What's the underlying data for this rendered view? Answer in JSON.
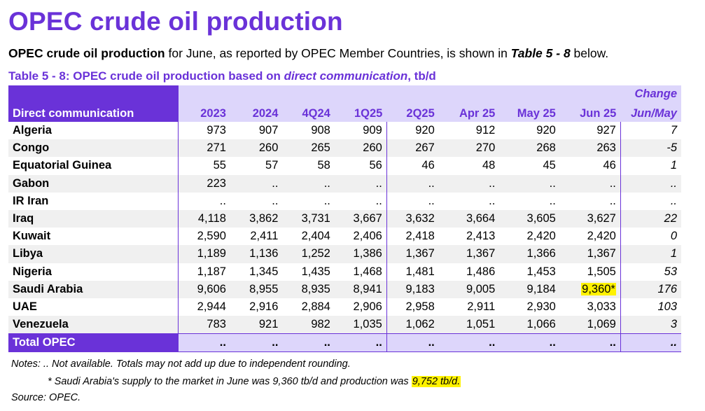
{
  "title": "OPEC crude oil production",
  "intro": {
    "bold": "OPEC crude oil production",
    "mid": " for June, as reported by OPEC Member Countries, is shown in ",
    "table_ref": "Table 5 - 8",
    "end": " below."
  },
  "caption": {
    "pre": "Table 5 - 8: OPEC crude oil production based on ",
    "italic": "direct communication",
    "post": ", tb/d"
  },
  "table": {
    "header_left": "Direct communication",
    "columns": [
      "2023",
      "2024",
      "4Q24",
      "1Q25",
      "2Q25",
      "Apr 25",
      "May 25",
      "Jun 25"
    ],
    "change_top": "Change",
    "change_bottom": "Jun/May",
    "rows": [
      {
        "name": "Algeria",
        "values": [
          "973",
          "907",
          "908",
          "909",
          "920",
          "912",
          "920",
          "927"
        ],
        "change": "7"
      },
      {
        "name": "Congo",
        "values": [
          "271",
          "260",
          "265",
          "260",
          "267",
          "270",
          "268",
          "263"
        ],
        "change": "-5"
      },
      {
        "name": "Equatorial Guinea",
        "values": [
          "55",
          "57",
          "58",
          "56",
          "46",
          "48",
          "45",
          "46"
        ],
        "change": "1"
      },
      {
        "name": "Gabon",
        "values": [
          "223",
          "..",
          "..",
          "..",
          "..",
          "..",
          "..",
          ".."
        ],
        "change": ".."
      },
      {
        "name": "IR Iran",
        "values": [
          "..",
          "..",
          "..",
          "..",
          "..",
          "..",
          "..",
          ".."
        ],
        "change": ".."
      },
      {
        "name": "Iraq",
        "values": [
          "4,118",
          "3,862",
          "3,731",
          "3,667",
          "3,632",
          "3,664",
          "3,605",
          "3,627"
        ],
        "change": "22"
      },
      {
        "name": "Kuwait",
        "values": [
          "2,590",
          "2,411",
          "2,404",
          "2,406",
          "2,418",
          "2,413",
          "2,420",
          "2,420"
        ],
        "change": "0"
      },
      {
        "name": "Libya",
        "values": [
          "1,189",
          "1,136",
          "1,252",
          "1,386",
          "1,367",
          "1,367",
          "1,366",
          "1,367"
        ],
        "change": "1"
      },
      {
        "name": "Nigeria",
        "values": [
          "1,187",
          "1,345",
          "1,435",
          "1,468",
          "1,481",
          "1,486",
          "1,453",
          "1,505"
        ],
        "change": "53"
      },
      {
        "name": "Saudi Arabia",
        "values": [
          "9,606",
          "8,955",
          "8,935",
          "8,941",
          "9,183",
          "9,005",
          "9,184",
          "9,360*"
        ],
        "change": "176"
      },
      {
        "name": "UAE",
        "values": [
          "2,944",
          "2,916",
          "2,884",
          "2,906",
          "2,958",
          "2,911",
          "2,930",
          "3,033"
        ],
        "change": "103"
      },
      {
        "name": "Venezuela",
        "values": [
          "783",
          "921",
          "982",
          "1,035",
          "1,062",
          "1,051",
          "1,066",
          "1,069"
        ],
        "change": "3"
      }
    ],
    "total": {
      "name": "Total  OPEC",
      "values": [
        "..",
        "..",
        "..",
        "..",
        "..",
        "..",
        "..",
        ".."
      ],
      "change": ".."
    }
  },
  "notes": {
    "line1": "Notes:  .. Not available. Totals may not add up due to independent rounding.",
    "line2_pre": "* Saudi Arabia's supply to the market in June was 9,360 tb/d and production was ",
    "line2_hl": "9,752 tb/d.",
    "source": "Source: OPEC."
  },
  "colors": {
    "accent": "#6a32d8",
    "header_fill": "#ddd6fb",
    "highlight": "#fff200",
    "row_shade": "#f0f0f0"
  }
}
